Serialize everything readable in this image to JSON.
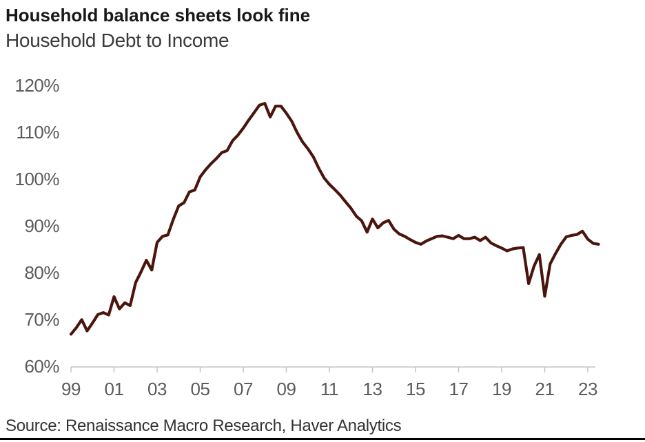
{
  "title": "Household balance sheets look fine",
  "subtitle": "Household Debt to Income",
  "source": "Source: Renaissance Macro Research, Haver Analytics",
  "chart_data": {
    "type": "line",
    "series_name": "Household Debt to Income (%)",
    "x_frequency": "quarterly",
    "x_start": 1999.0,
    "x_step": 0.25,
    "values": [
      67.0,
      68.4,
      70.1,
      67.7,
      69.4,
      71.2,
      71.6,
      71.1,
      75.0,
      72.4,
      73.7,
      73.1,
      78.0,
      80.3,
      82.8,
      80.7,
      86.6,
      87.9,
      88.2,
      91.5,
      94.4,
      95.1,
      97.4,
      97.8,
      100.6,
      102.1,
      103.4,
      104.5,
      105.8,
      106.2,
      108.3,
      109.5,
      111.0,
      112.7,
      114.3,
      115.9,
      116.3,
      113.4,
      115.7,
      115.7,
      114.2,
      112.5,
      110.1,
      108.1,
      106.6,
      104.9,
      102.5,
      100.4,
      99.0,
      97.9,
      96.7,
      95.3,
      93.9,
      92.2,
      91.2,
      88.8,
      91.6,
      89.7,
      90.8,
      91.3,
      89.4,
      88.4,
      87.9,
      87.2,
      86.6,
      86.2,
      86.9,
      87.4,
      87.9,
      88.0,
      87.7,
      87.4,
      88.1,
      87.4,
      87.4,
      87.7,
      87.0,
      87.7,
      86.5,
      85.9,
      85.4,
      84.8,
      85.2,
      85.4,
      85.5,
      77.8,
      81.5,
      84.0,
      75.1,
      82.0,
      84.2,
      86.2,
      87.8,
      88.1,
      88.3,
      89.0,
      87.3,
      86.4,
      86.2
    ],
    "y_tick_labels": [
      "120%",
      "110%",
      "100%",
      "90%",
      "80%",
      "70%",
      "60%"
    ],
    "y_tick_values": [
      120,
      110,
      100,
      90,
      80,
      70,
      60
    ],
    "x_tick_labels": [
      "99",
      "01",
      "03",
      "05",
      "07",
      "09",
      "11",
      "13",
      "15",
      "17",
      "19",
      "21",
      "23"
    ],
    "x_tick_years": [
      1999,
      2001,
      2003,
      2005,
      2007,
      2009,
      2011,
      2013,
      2015,
      2017,
      2019,
      2021,
      2023
    ],
    "ylim": [
      60,
      120
    ],
    "xlim": [
      1999.0,
      2023.5
    ],
    "grid": false,
    "legend": "none",
    "line_color": "#4a150c",
    "axis_color": "#c4c4c4",
    "tick_label_color": "#5b5b5e"
  }
}
